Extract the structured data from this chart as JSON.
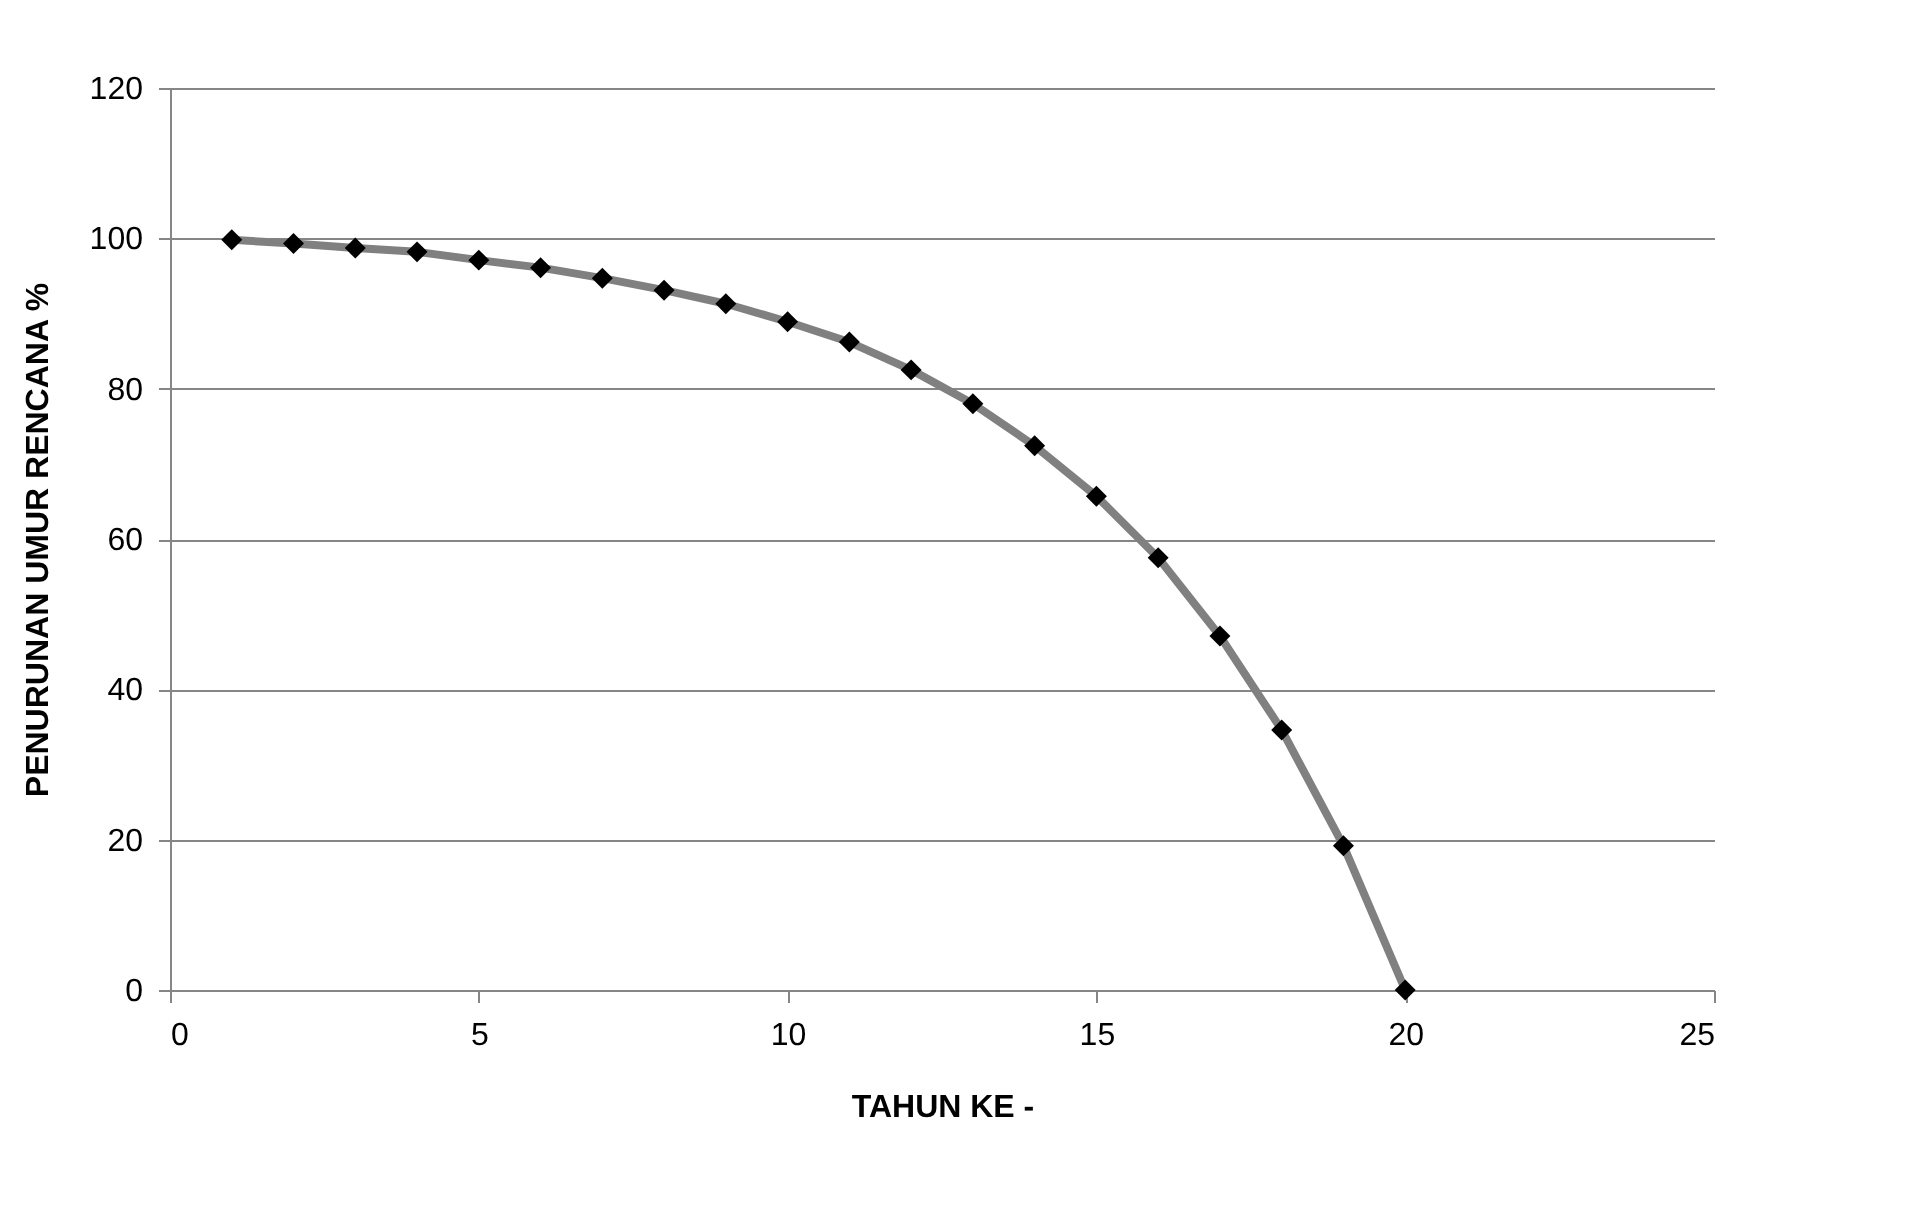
{
  "chart_data": {
    "type": "line",
    "xlabel": "TAHUN KE -",
    "ylabel": "PENURUNAN UMUR RENCANA %",
    "x": [
      1,
      2,
      3,
      4,
      5,
      6,
      7,
      8,
      9,
      10,
      11,
      12,
      13,
      14,
      15,
      16,
      17,
      18,
      19,
      20
    ],
    "series": [
      {
        "color": "#808080",
        "values": [
          99.8,
          99.3,
          98.7,
          98.2,
          97.1,
          96.1,
          94.7,
          93.1,
          91.3,
          88.9,
          86.2,
          82.5,
          78,
          72.4,
          65.7,
          57.5,
          47.1,
          34.6,
          19.2,
          0
        ]
      }
    ],
    "xlim": [
      0,
      25
    ],
    "xticks": [
      0,
      5,
      10,
      15,
      20,
      25
    ],
    "ylim": [
      0,
      120
    ],
    "yticks": [
      0,
      20,
      40,
      60,
      80,
      100,
      120
    ],
    "grid": "y",
    "marker": "diamond",
    "line_style": "solid"
  }
}
